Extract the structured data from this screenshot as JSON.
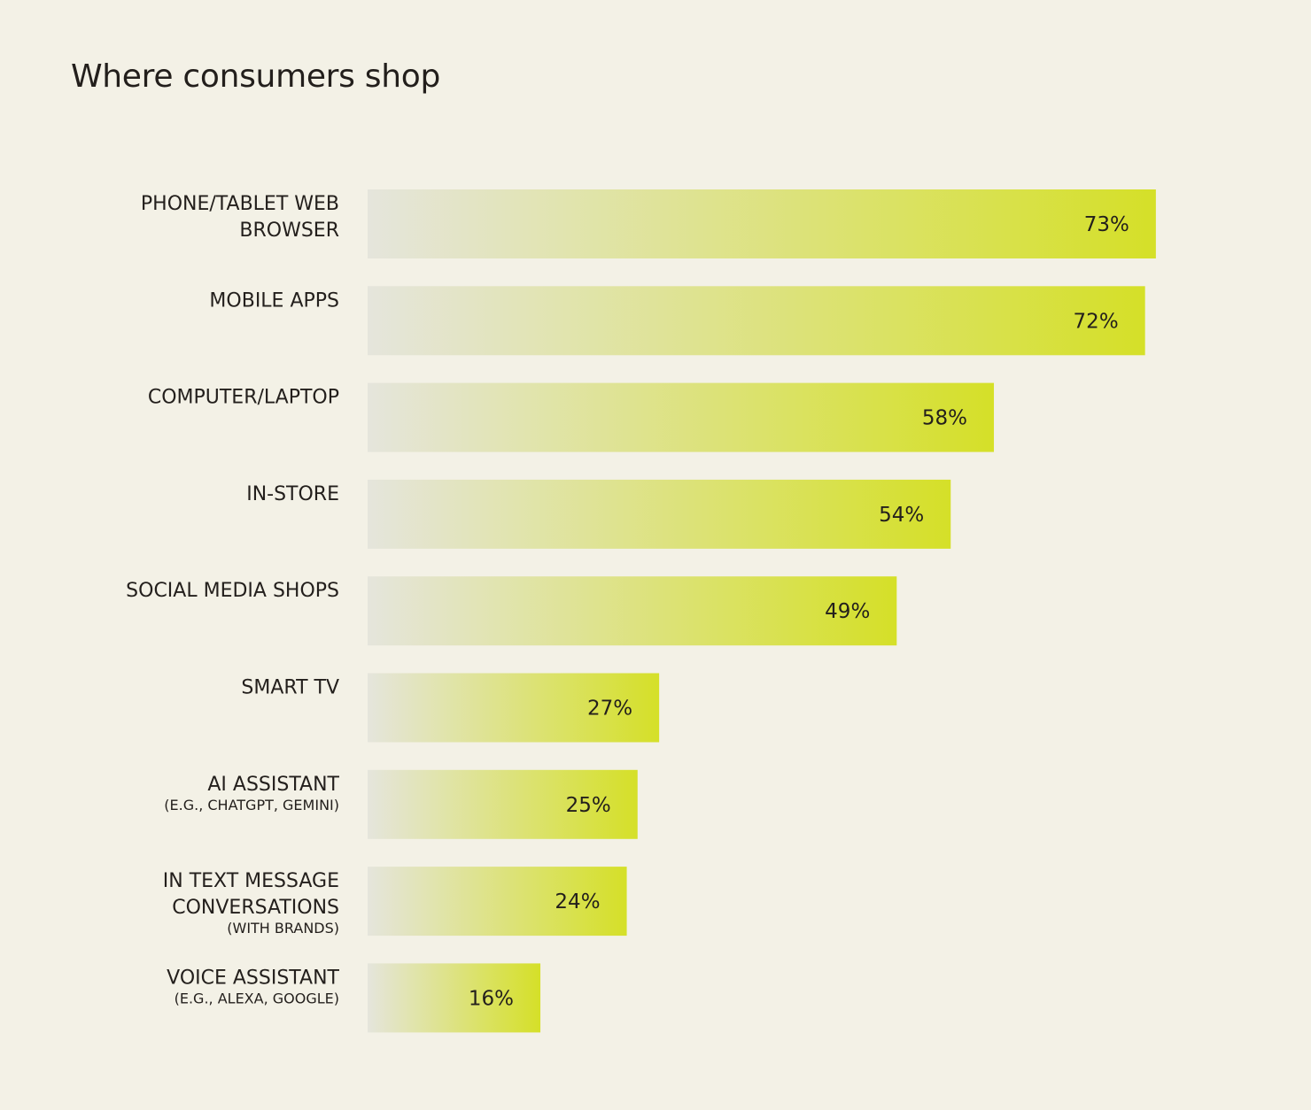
{
  "chart_data": {
    "type": "bar",
    "orientation": "horizontal",
    "title": "Where consumers shop",
    "categories": [
      {
        "label": [
          "PHONE/TABLET WEB",
          "BROWSER"
        ],
        "sub": ""
      },
      {
        "label": [
          "MOBILE APPS"
        ],
        "sub": ""
      },
      {
        "label": [
          "COMPUTER/LAPTOP"
        ],
        "sub": ""
      },
      {
        "label": [
          "IN-STORE"
        ],
        "sub": ""
      },
      {
        "label": [
          "SOCIAL MEDIA SHOPS"
        ],
        "sub": ""
      },
      {
        "label": [
          "SMART TV"
        ],
        "sub": ""
      },
      {
        "label": [
          "AI ASSISTANT"
        ],
        "sub": "(E.G., CHATGPT, GEMINI)"
      },
      {
        "label": [
          "IN TEXT MESSAGE",
          "CONVERSATIONS"
        ],
        "sub": "(WITH BRANDS)"
      },
      {
        "label": [
          "VOICE ASSISTANT"
        ],
        "sub": "(E.G., ALEXA, GOOGLE)"
      }
    ],
    "values": [
      73,
      72,
      58,
      54,
      49,
      27,
      25,
      24,
      16
    ],
    "value_labels": [
      "73%",
      "72%",
      "58%",
      "54%",
      "49%",
      "27%",
      "25%",
      "24%",
      "16%"
    ],
    "value_unit": "%",
    "grid": false,
    "colors": {
      "background": "#f3f1e6",
      "bar_start": "#e5e5dc",
      "bar_end": "#d5e028",
      "text": "#231f1c"
    }
  }
}
